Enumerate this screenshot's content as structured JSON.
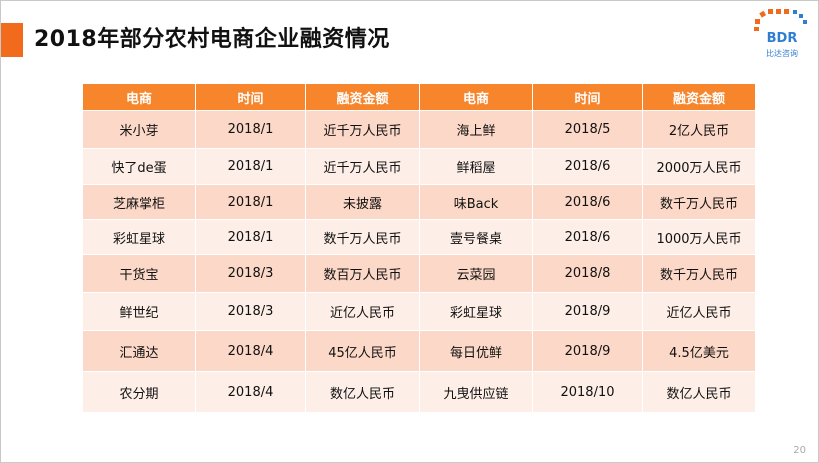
{
  "title": "2018年部分农村电商企业融资情况",
  "logo": {
    "text": "BDR",
    "sub": "比达咨询",
    "accent": "#f26a1b",
    "brand": "#2f7fd1"
  },
  "table": {
    "headers": [
      "电商",
      "时间",
      "融资金额",
      "电商",
      "时间",
      "融资金额"
    ],
    "rows": [
      [
        "米小芽",
        "2018/1",
        "近千万人民币",
        "海上鲜",
        "2018/5",
        "2亿人民币"
      ],
      [
        "快了de蛋",
        "2018/1",
        "近千万人民币",
        "鲜稻屋",
        "2018/6",
        "2000万人民币"
      ],
      [
        "芝麻掌柜",
        "2018/1",
        "未披露",
        "味Back",
        "2018/6",
        "数千万人民币"
      ],
      [
        "彩虹星球",
        "2018/1",
        "数千万人民币",
        "壹号餐桌",
        "2018/6",
        "1000万人民币"
      ],
      [
        "干货宝",
        "2018/3",
        "数百万人民币",
        "云菜园",
        "2018/8",
        "数千万人民币"
      ],
      [
        "鲜世纪",
        "2018/3",
        "近亿人民币",
        "彩虹星球",
        "2018/9",
        "近亿人民币"
      ],
      [
        "汇通达",
        "2018/4",
        "45亿人民币",
        "每日优鲜",
        "2018/9",
        "4.5亿美元"
      ],
      [
        "农分期",
        "2018/4",
        "数亿人民币",
        "九曳供应链",
        "2018/10",
        "数亿人民币"
      ]
    ]
  },
  "page_number": "20"
}
